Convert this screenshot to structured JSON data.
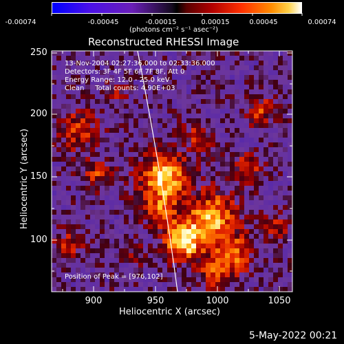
{
  "colorbar": {
    "tick_labels": [
      "-0.00074",
      "-0.00045",
      "-0.00015",
      "0.00015",
      "0.00045",
      "0.00074"
    ],
    "units": "(photons cm⁻² s⁻¹ asec⁻²)",
    "colors": [
      "#0000ff",
      "#7a1fd6",
      "#000000",
      "#8b0000",
      "#ff3b00",
      "#ffb000",
      "#ffffff"
    ]
  },
  "plot": {
    "title": "Reconstructed RHESSI Image",
    "info_lines": [
      "13-Nov-2004 02:27:36.000 to 02:33:36.000",
      "Detectors: 3F 4F 5F 6F 7F 8F, Att 0",
      "Energy Range: 12.0 - 25.0 keV",
      "Clean     Total counts: 4.90E+03"
    ],
    "peak_label": "Position of Peak = [976,102]",
    "xlabel": "Heliocentric X (arcsec)",
    "ylabel": "Heliocentric Y (arcsec)",
    "x_ticks": [
      "900",
      "950",
      "1000",
      "1050"
    ],
    "y_ticks": [
      "250",
      "200",
      "150",
      "100"
    ],
    "xlim": [
      865,
      1060
    ],
    "ylim": [
      55,
      252
    ]
  },
  "timestamp": "5-May-2022 00:21"
}
